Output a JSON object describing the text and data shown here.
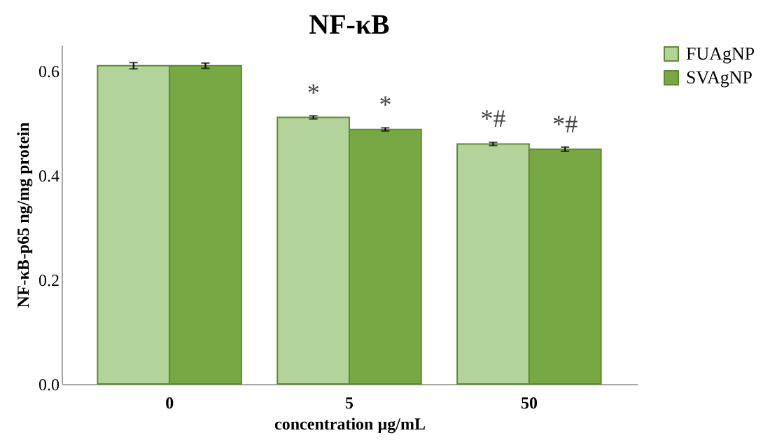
{
  "chart_data": {
    "type": "bar",
    "title": "NF-κB",
    "xlabel": "concentration µg/mL",
    "ylabel": "NF-κB-p65 ng/mg protein",
    "categories": [
      "0",
      "5",
      "50"
    ],
    "series": [
      {
        "name": "FUAgNP",
        "color": "#b2d39a",
        "values": [
          0.61,
          0.511,
          0.46
        ],
        "errors": [
          0.006,
          0.003,
          0.003
        ]
      },
      {
        "name": "SVAgNP",
        "color": "#78a843",
        "values": [
          0.61,
          0.488,
          0.45
        ],
        "errors": [
          0.005,
          0.003,
          0.004
        ]
      }
    ],
    "ylim": [
      0,
      0.65
    ],
    "yticks": [
      {
        "value": 0,
        "label": "0.0"
      },
      0.2,
      0.4,
      0.6
    ],
    "grid": false,
    "legend": "right",
    "annotations": [
      {
        "text": "*",
        "x": "5",
        "y": 0.511
      },
      {
        "text": "*",
        "x": "5",
        "y": 0.488
      },
      {
        "text": "*#",
        "x": "50",
        "y": 0.46
      },
      {
        "text": "*#",
        "x": "50",
        "y": 0.45
      }
    ]
  }
}
